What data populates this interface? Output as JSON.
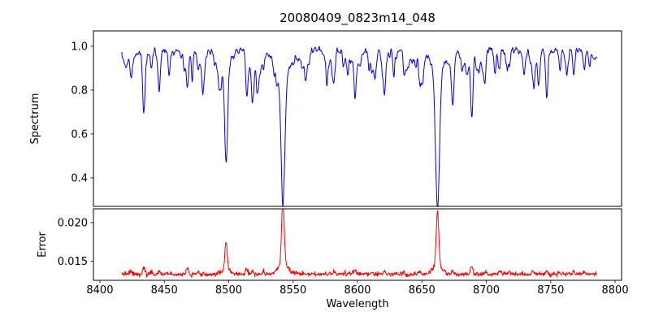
{
  "figure": {
    "background_color": "#ffffff",
    "axes_color": "#000000"
  },
  "chart_data": [
    {
      "type": "line",
      "panel": "spectrum",
      "title": "20080409_0823m14_048",
      "ylabel": "Spectrum",
      "line_color": "#0000ee",
      "xlim": [
        8395,
        8805
      ],
      "ylim": [
        0.27,
        1.07
      ],
      "xticks": [
        8400,
        8450,
        8500,
        8550,
        8600,
        8650,
        8700,
        8750,
        8800
      ],
      "xtick_labels": [
        "8400",
        "8450",
        "8500",
        "8550",
        "8600",
        "8650",
        "8700",
        "8750",
        "8800"
      ],
      "yticks": [
        0.4,
        0.6,
        0.8,
        1.0
      ],
      "ytick_labels": [
        "0.4",
        "0.6",
        "0.8",
        "1.0"
      ],
      "x_data_range": [
        8417,
        8786
      ],
      "continuum": 0.98,
      "noise_sigma": 0.012,
      "absorption_lines": [
        {
          "center": 8498.0,
          "depth": 0.46,
          "width": 1.2,
          "wing_depth": 0.05,
          "wing_width": 4.0
        },
        {
          "center": 8542.1,
          "depth": 0.6,
          "width": 1.5,
          "wing_depth": 0.1,
          "wing_width": 6.5
        },
        {
          "center": 8662.1,
          "depth": 0.58,
          "width": 1.4,
          "wing_depth": 0.09,
          "wing_width": 5.5
        },
        {
          "center": 8424.0,
          "depth": 0.1,
          "width": 0.8
        },
        {
          "center": 8434.0,
          "depth": 0.21,
          "width": 0.9
        },
        {
          "center": 8440.0,
          "depth": 0.08,
          "width": 0.7
        },
        {
          "center": 8446.0,
          "depth": 0.12,
          "width": 0.8
        },
        {
          "center": 8468.0,
          "depth": 0.17,
          "width": 0.9
        },
        {
          "center": 8476.0,
          "depth": 0.07,
          "width": 0.7
        },
        {
          "center": 8514.0,
          "depth": 0.18,
          "width": 0.8
        },
        {
          "center": 8518.5,
          "depth": 0.11,
          "width": 0.7
        },
        {
          "center": 8527.0,
          "depth": 0.07,
          "width": 0.7
        },
        {
          "center": 8582.0,
          "depth": 0.1,
          "width": 0.8
        },
        {
          "center": 8598.0,
          "depth": 0.13,
          "width": 0.8
        },
        {
          "center": 8611.0,
          "depth": 0.09,
          "width": 0.7
        },
        {
          "center": 8621.0,
          "depth": 0.13,
          "width": 0.8
        },
        {
          "center": 8636.0,
          "depth": 0.07,
          "width": 0.7
        },
        {
          "center": 8648.0,
          "depth": 0.1,
          "width": 0.8
        },
        {
          "center": 8674.0,
          "depth": 0.12,
          "width": 0.8
        },
        {
          "center": 8688.6,
          "depth": 0.26,
          "width": 0.9
        },
        {
          "center": 8699.0,
          "depth": 0.07,
          "width": 0.7
        },
        {
          "center": 8710.0,
          "depth": 0.09,
          "width": 0.8
        },
        {
          "center": 8718.0,
          "depth": 0.07,
          "width": 0.7
        },
        {
          "center": 8736.0,
          "depth": 0.09,
          "width": 0.8
        },
        {
          "center": 8747.0,
          "depth": 0.11,
          "width": 0.8
        },
        {
          "center": 8757.0,
          "depth": 0.08,
          "width": 0.7
        },
        {
          "center": 8768.0,
          "depth": 0.1,
          "width": 0.8
        },
        {
          "center": 8776.0,
          "depth": 0.07,
          "width": 0.7
        }
      ]
    },
    {
      "type": "line",
      "panel": "error",
      "ylabel": "Error",
      "xlabel": "Wavelength",
      "line_color": "#ff0000",
      "ylim": [
        0.0125,
        0.0218
      ],
      "yticks": [
        0.015,
        0.02
      ],
      "ytick_labels": [
        "0.015",
        "0.020"
      ],
      "baseline": 0.0133,
      "noise_sigma": 0.00015,
      "error_peaks": [
        {
          "center": 8498.0,
          "amp": 0.0036,
          "width": 0.9
        },
        {
          "center": 8498.0,
          "amp": 0.0006,
          "width": 3.0
        },
        {
          "center": 8542.1,
          "amp": 0.0085,
          "width": 1.0
        },
        {
          "center": 8542.1,
          "amp": 0.0013,
          "width": 4.0
        },
        {
          "center": 8662.1,
          "amp": 0.007,
          "width": 1.0
        },
        {
          "center": 8662.1,
          "amp": 0.0011,
          "width": 3.5
        }
      ]
    }
  ],
  "generation": {
    "seed": 42,
    "n_points": 1150,
    "n_small_lines": 115,
    "small_line_max_depth": 0.1
  }
}
